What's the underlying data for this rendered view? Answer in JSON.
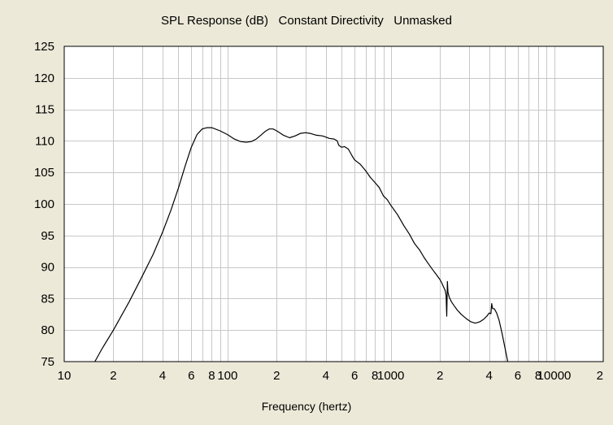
{
  "chart_data": {
    "type": "line",
    "title": "SPL Response (dB)   Constant Directivity   Unmasked",
    "xlabel": "Frequency (hertz)",
    "ylabel": "",
    "x_scale": "log",
    "xlim": [
      10,
      20000
    ],
    "ylim": [
      75,
      125
    ],
    "grid": true,
    "y_ticks": [
      125,
      120,
      115,
      110,
      105,
      100,
      95,
      90,
      85,
      80,
      75
    ],
    "x_tick_labels": [
      {
        "x": 10,
        "label": "10"
      },
      {
        "x": 20,
        "label": "2"
      },
      {
        "x": 40,
        "label": "4"
      },
      {
        "x": 60,
        "label": "6"
      },
      {
        "x": 80,
        "label": "8"
      },
      {
        "x": 100,
        "label": "100"
      },
      {
        "x": 200,
        "label": "2"
      },
      {
        "x": 400,
        "label": "4"
      },
      {
        "x": 600,
        "label": "6"
      },
      {
        "x": 800,
        "label": "8"
      },
      {
        "x": 1000,
        "label": "1000"
      },
      {
        "x": 2000,
        "label": "2"
      },
      {
        "x": 4000,
        "label": "4"
      },
      {
        "x": 6000,
        "label": "6"
      },
      {
        "x": 8000,
        "label": "8"
      },
      {
        "x": 10000,
        "label": "10000"
      },
      {
        "x": 20000,
        "label": "2"
      }
    ],
    "series": [
      {
        "color": "#000000",
        "points": [
          [
            15.4,
            75.0
          ],
          [
            17,
            77.0
          ],
          [
            20,
            80.0
          ],
          [
            25,
            84.5
          ],
          [
            30,
            88.5
          ],
          [
            35,
            92.0
          ],
          [
            40,
            95.5
          ],
          [
            45,
            99.0
          ],
          [
            50,
            102.5
          ],
          [
            55,
            106.0
          ],
          [
            60,
            109.0
          ],
          [
            65,
            111.0
          ],
          [
            70,
            111.9
          ],
          [
            75,
            112.1
          ],
          [
            80,
            112.1
          ],
          [
            90,
            111.6
          ],
          [
            100,
            111.0
          ],
          [
            110,
            110.3
          ],
          [
            120,
            109.9
          ],
          [
            130,
            109.8
          ],
          [
            140,
            109.9
          ],
          [
            150,
            110.3
          ],
          [
            160,
            110.9
          ],
          [
            170,
            111.5
          ],
          [
            180,
            111.9
          ],
          [
            190,
            111.9
          ],
          [
            200,
            111.6
          ],
          [
            220,
            110.9
          ],
          [
            240,
            110.5
          ],
          [
            260,
            110.8
          ],
          [
            280,
            111.2
          ],
          [
            300,
            111.3
          ],
          [
            320,
            111.2
          ],
          [
            350,
            110.9
          ],
          [
            380,
            110.8
          ],
          [
            400,
            110.6
          ],
          [
            420,
            110.4
          ],
          [
            450,
            110.3
          ],
          [
            470,
            110.0
          ],
          [
            480,
            109.3
          ],
          [
            500,
            109.0
          ],
          [
            520,
            109.1
          ],
          [
            550,
            108.7
          ],
          [
            580,
            107.6
          ],
          [
            600,
            107.0
          ],
          [
            650,
            106.3
          ],
          [
            700,
            105.3
          ],
          [
            750,
            104.2
          ],
          [
            800,
            103.4
          ],
          [
            850,
            102.6
          ],
          [
            900,
            101.3
          ],
          [
            950,
            100.7
          ],
          [
            1000,
            99.8
          ],
          [
            1100,
            98.3
          ],
          [
            1200,
            96.6
          ],
          [
            1300,
            95.2
          ],
          [
            1400,
            93.7
          ],
          [
            1500,
            92.7
          ],
          [
            1600,
            91.5
          ],
          [
            1700,
            90.5
          ],
          [
            1800,
            89.6
          ],
          [
            1900,
            88.8
          ],
          [
            2000,
            88.0
          ],
          [
            2050,
            87.5
          ],
          [
            2100,
            86.9
          ],
          [
            2150,
            86.3
          ],
          [
            2180,
            85.5
          ],
          [
            2200,
            82.2
          ],
          [
            2220,
            87.7
          ],
          [
            2240,
            86.0
          ],
          [
            2280,
            85.2
          ],
          [
            2350,
            84.5
          ],
          [
            2450,
            83.8
          ],
          [
            2550,
            83.2
          ],
          [
            2700,
            82.5
          ],
          [
            2900,
            81.8
          ],
          [
            3100,
            81.3
          ],
          [
            3300,
            81.1
          ],
          [
            3500,
            81.3
          ],
          [
            3700,
            81.7
          ],
          [
            3900,
            82.3
          ],
          [
            4000,
            82.7
          ],
          [
            4100,
            82.6
          ],
          [
            4150,
            84.2
          ],
          [
            4200,
            83.4
          ],
          [
            4300,
            83.4
          ],
          [
            4450,
            82.7
          ],
          [
            4600,
            81.6
          ],
          [
            4800,
            79.5
          ],
          [
            5000,
            77.2
          ],
          [
            5200,
            75.0
          ]
        ]
      }
    ]
  }
}
